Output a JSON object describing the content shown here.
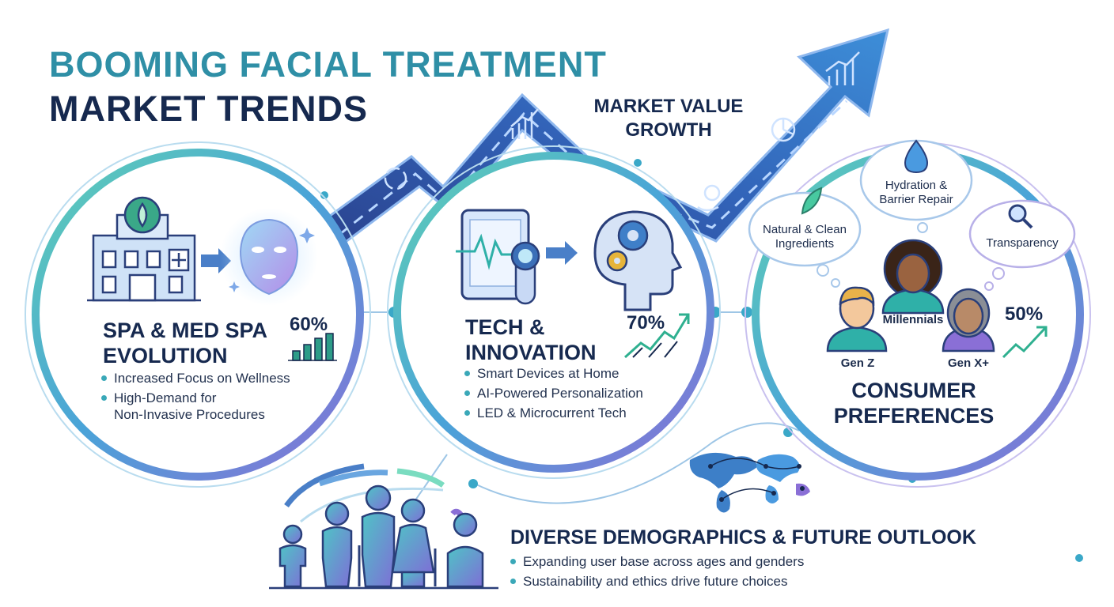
{
  "header": {
    "line1": "BOOMING FACIAL TREATMENT",
    "line2": "MARKET TRENDS"
  },
  "growth": {
    "line1": "MARKET VALUE",
    "line2": "GROWTH"
  },
  "spa": {
    "title_line1": "SPA & MED SPA",
    "title_line2": "EVOLUTION",
    "stat": "60%",
    "bullet1": "Increased Focus on Wellness",
    "bullet2_line1": "High-Demand for",
    "bullet2_line2": "Non-Invasive Procedures"
  },
  "tech": {
    "title_line1": "TECH &",
    "title_line2": "INNOVATION",
    "stat": "70%",
    "bullets": [
      "Smart Devices at Home",
      "AI-Powered Personalization",
      "LED & Microcurrent Tech"
    ]
  },
  "consumer": {
    "title_line1": "CONSUMER",
    "title_line2": "PREFERENCES",
    "stat": "50%",
    "cloud_natural_line1": "Natural & Clean",
    "cloud_natural_line2": "Ingredients",
    "cloud_hydration_line1": "Hydration &",
    "cloud_hydration_line2": "Barrier Repair",
    "cloud_transparency": "Transparency",
    "gen_z": "Gen Z",
    "millennials": "Millennials",
    "gen_x": "Gen X+"
  },
  "demographics": {
    "title": "DIVERSE DEMOGRAPHICS & FUTURE OUTLOOK",
    "bullets": [
      "Expanding user base across ages and genders",
      "Sustainability and ethics drive future choices"
    ]
  },
  "colors": {
    "navy": "#16294f",
    "teal": "#2f8fa6",
    "green": "#48c9a0",
    "purple": "#8a6fd6",
    "blue": "#3d6fc0"
  }
}
